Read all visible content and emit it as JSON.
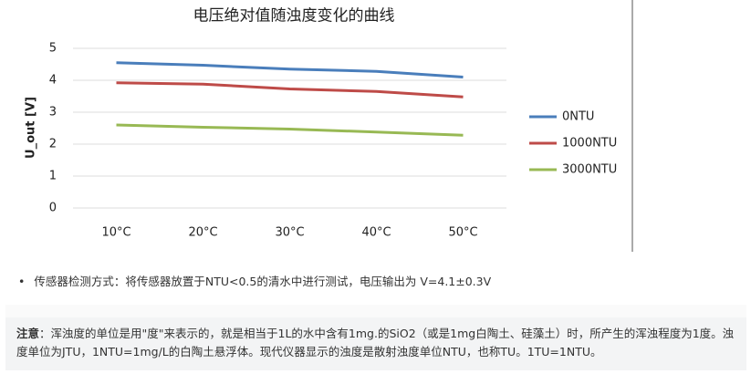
{
  "chart_data": {
    "type": "line",
    "title": "电压绝对值随浊度变化的曲线",
    "y_label": "U_out [V]",
    "categories": [
      "10°C",
      "20°C",
      "30°C",
      "40°C",
      "50°C"
    ],
    "series": [
      {
        "name": "0NTU",
        "color": "#4a7ebb",
        "values": [
          4.55,
          4.47,
          4.35,
          4.28,
          4.1
        ]
      },
      {
        "name": "1000NTU",
        "color": "#be4b48",
        "values": [
          3.92,
          3.88,
          3.73,
          3.65,
          3.48
        ]
      },
      {
        "name": "3000NTU",
        "color": "#98b954",
        "values": [
          2.6,
          2.53,
          2.47,
          2.38,
          2.28
        ]
      }
    ],
    "ylim": [
      0,
      5
    ],
    "yticks": [
      0,
      1,
      2,
      3,
      4,
      5
    ],
    "grid": true,
    "legend": "right"
  },
  "bullet": "传感器检测方式：将传感器放置于NTU<0.5的清水中进行测试，电压输出为 V=4.1±0.3V",
  "note": {
    "label": "注意",
    "text": "：浑浊度的单位是用\"度\"来表示的，就是相当于1L的水中含有1mg.的SiO2（或是1mg白陶土、硅藻土）时，所产生的浑浊程度为1度。浊度单位为JTU，1NTU=1mg/L的白陶土悬浮体。现代仪器显示的浊度是散射浊度单位NTU，也称TU。1TU=1NTU。"
  }
}
